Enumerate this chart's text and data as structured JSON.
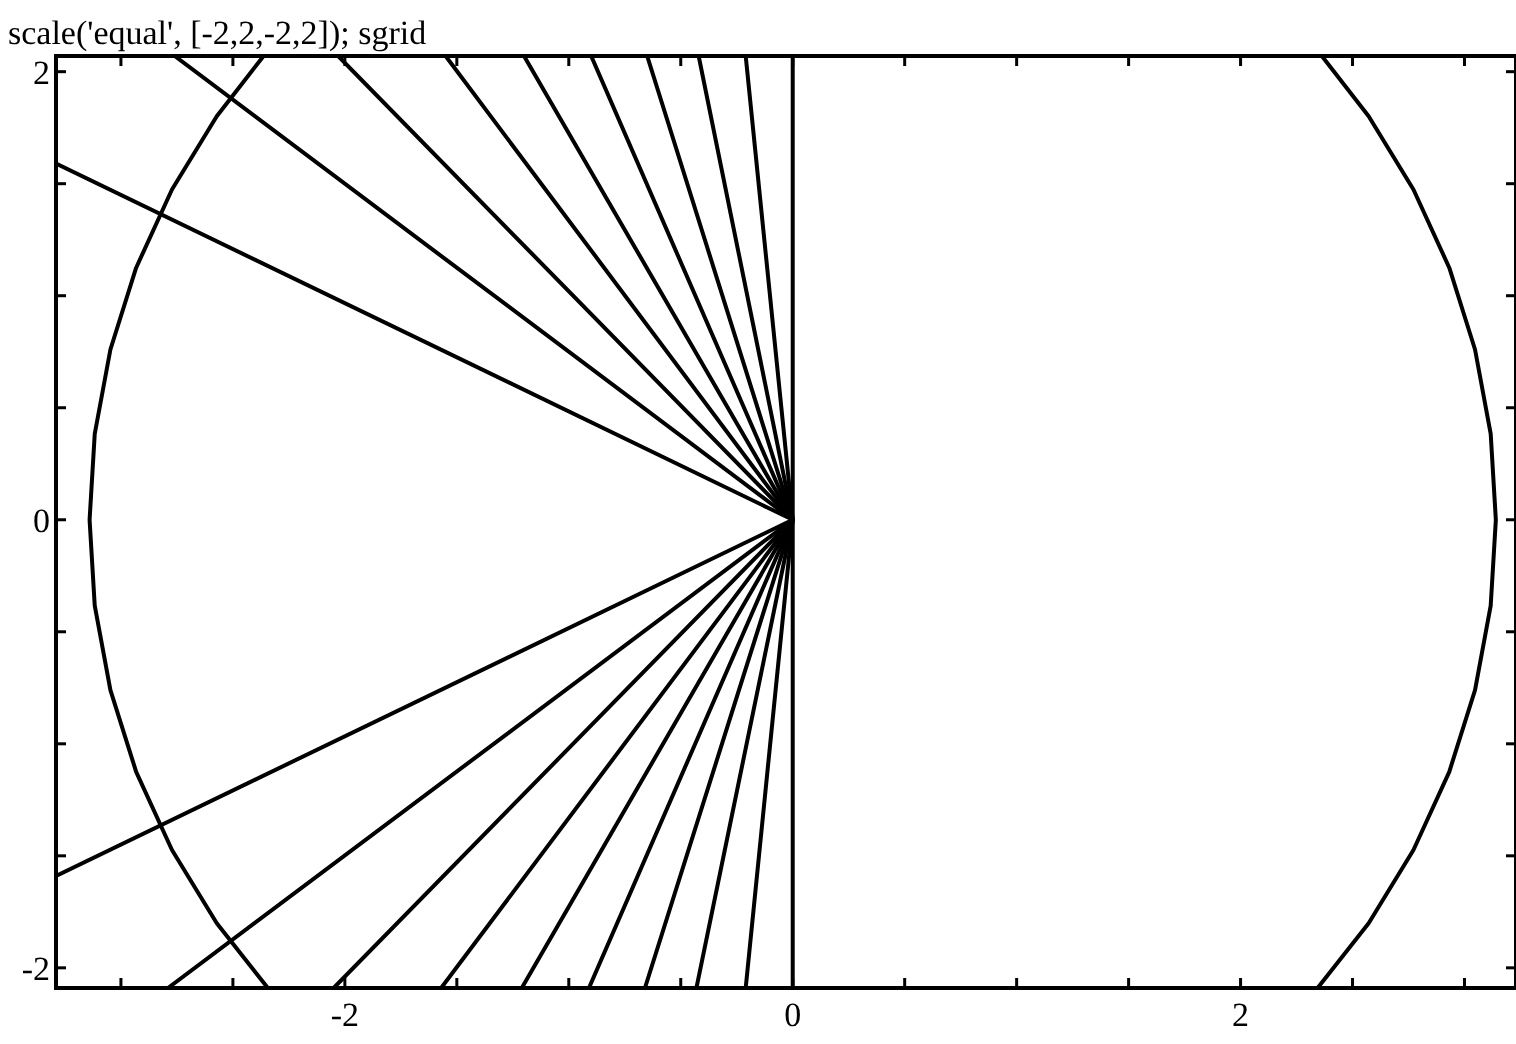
{
  "chart_data": {
    "type": "line",
    "title": "scale('equal', [-2,2,-2,2]); sgrid",
    "marker": "none",
    "line_style": "solid",
    "xlim": [
      -3.29,
      3.23
    ],
    "ylim": [
      -2.09,
      2.07
    ],
    "xticks": [
      {
        "value": -3,
        "label": null
      },
      {
        "value": -2.5,
        "label": null
      },
      -2,
      {
        "value": -1.5,
        "label": null
      },
      {
        "value": -1,
        "label": null
      },
      {
        "value": -0.5,
        "label": null
      },
      0,
      {
        "value": 0.5,
        "label": null
      },
      {
        "value": 1,
        "label": null
      },
      {
        "value": 1.5,
        "label": null
      },
      2,
      {
        "value": 2.5,
        "label": null
      },
      {
        "value": 3,
        "label": null
      }
    ],
    "yticks": [
      -2,
      {
        "value": -1.5,
        "label": null
      },
      {
        "value": -1,
        "label": null
      },
      {
        "value": -0.5,
        "label": null
      },
      0,
      {
        "value": 0.5,
        "label": null
      },
      {
        "value": 1,
        "label": null
      },
      {
        "value": 1.5,
        "label": null
      },
      2
    ],
    "series": [
      {
        "color": "#000000",
        "x": [
          0,
          0,
          0
        ],
        "values": [
          2.07,
          0,
          -2.09
        ]
      },
      {
        "color": "#000000",
        "x": [
          -0.21,
          0,
          -0.21
        ],
        "values": [
          2.07,
          0,
          -2.09
        ]
      },
      {
        "color": "#000000",
        "x": [
          -0.42,
          0,
          -0.43
        ],
        "values": [
          2.07,
          0,
          -2.09
        ]
      },
      {
        "color": "#000000",
        "x": [
          -0.65,
          0,
          -0.66
        ],
        "values": [
          2.07,
          0,
          -2.09
        ]
      },
      {
        "color": "#000000",
        "x": [
          -0.9,
          0,
          -0.91
        ],
        "values": [
          2.07,
          0,
          -2.09
        ]
      },
      {
        "color": "#000000",
        "x": [
          -1.2,
          0,
          -1.21
        ],
        "values": [
          2.07,
          0,
          -2.09
        ]
      },
      {
        "color": "#000000",
        "x": [
          -1.55,
          0,
          -1.57
        ],
        "values": [
          2.07,
          0,
          -2.09
        ]
      },
      {
        "color": "#000000",
        "x": [
          -2.03,
          0,
          -2.05
        ],
        "values": [
          2.07,
          0,
          -2.09
        ]
      },
      {
        "color": "#000000",
        "x": [
          -2.76,
          0,
          -2.79
        ],
        "values": [
          2.07,
          0,
          -2.09
        ]
      },
      {
        "color": "#000000",
        "x": [
          -3.29,
          0,
          -3.29
        ],
        "values": [
          1.59,
          0,
          -1.59
        ]
      },
      {
        "color": "#000000",
        "x": [
          2.344,
          2.572,
          2.772,
          2.932,
          3.047,
          3.117,
          3.14,
          3.117,
          3.047,
          2.932,
          2.772,
          2.572,
          2.363
        ],
        "values": [
          -2.09,
          -1.801,
          -1.474,
          -1.125,
          -0.76,
          -0.383,
          0,
          0.383,
          0.76,
          1.125,
          1.474,
          1.801,
          2.07
        ]
      },
      {
        "color": "#000000",
        "x": [
          -2.344,
          -2.572,
          -2.772,
          -2.932,
          -3.047,
          -3.117,
          -3.14,
          -3.117,
          -3.047,
          -2.932,
          -2.772,
          -2.572,
          -2.363
        ],
        "values": [
          -2.09,
          -1.801,
          -1.474,
          -1.125,
          -0.76,
          -0.383,
          0,
          0.383,
          0.76,
          1.125,
          1.474,
          1.801,
          2.07
        ]
      }
    ]
  }
}
